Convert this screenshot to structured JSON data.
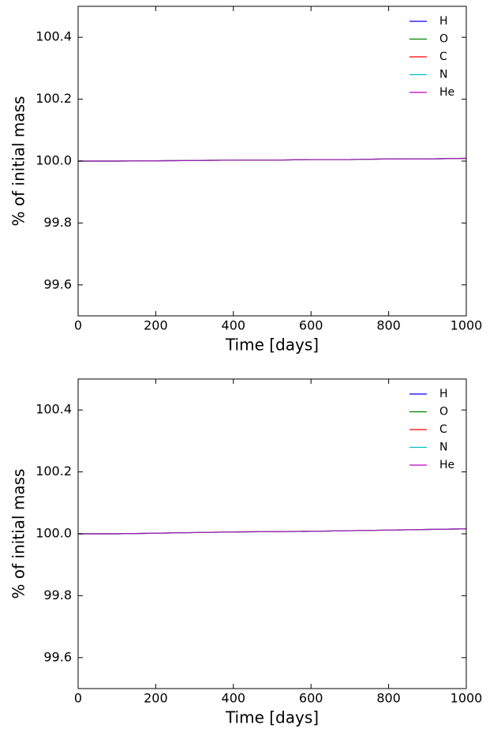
{
  "chart_data": [
    {
      "type": "line",
      "xlabel": "Time [days]",
      "ylabel": "% of initial mass",
      "x": [
        0,
        100,
        200,
        300,
        400,
        500,
        600,
        700,
        800,
        900,
        1000
      ],
      "series": [
        {
          "name": "H",
          "color": "#0000ff",
          "values": [
            100.0,
            100.0,
            100.001,
            100.002,
            100.003,
            100.003,
            100.005,
            100.005,
            100.007,
            100.007,
            100.009
          ]
        },
        {
          "name": "O",
          "color": "#008000",
          "values": [
            100.0,
            100.0,
            100.001,
            100.002,
            100.003,
            100.003,
            100.005,
            100.005,
            100.007,
            100.007,
            100.009
          ]
        },
        {
          "name": "C",
          "color": "#ff0000",
          "values": [
            100.0,
            100.0,
            100.001,
            100.002,
            100.003,
            100.003,
            100.005,
            100.005,
            100.007,
            100.007,
            100.009
          ]
        },
        {
          "name": "N",
          "color": "#00bfbf",
          "values": [
            100.0,
            100.0,
            100.001,
            100.002,
            100.003,
            100.003,
            100.005,
            100.005,
            100.007,
            100.007,
            100.009
          ]
        },
        {
          "name": "He",
          "color": "#bf00bf",
          "values": [
            100.0,
            100.0,
            100.001,
            100.002,
            100.003,
            100.003,
            100.005,
            100.005,
            100.007,
            100.007,
            100.009
          ]
        }
      ],
      "xlim": [
        0,
        1000
      ],
      "xticks": [
        0,
        200,
        400,
        600,
        800,
        1000
      ],
      "ylim": [
        99.5,
        100.5
      ],
      "yticks": [
        99.6,
        99.8,
        {
          "value": 100.0,
          "label": "100.0"
        },
        100.2,
        100.4
      ],
      "legend": "upper right"
    },
    {
      "type": "line",
      "xlabel": "Time [days]",
      "ylabel": "% of initial mass",
      "x": [
        0,
        100,
        200,
        300,
        400,
        500,
        600,
        700,
        800,
        900,
        1000
      ],
      "series": [
        {
          "name": "H",
          "color": "#0000ff",
          "values": [
            100.0,
            100.0,
            100.002,
            100.004,
            100.006,
            100.007,
            100.008,
            100.01,
            100.012,
            100.014,
            100.016
          ]
        },
        {
          "name": "O",
          "color": "#008000",
          "values": [
            100.0,
            100.0,
            100.002,
            100.004,
            100.006,
            100.007,
            100.008,
            100.01,
            100.012,
            100.014,
            100.016
          ]
        },
        {
          "name": "C",
          "color": "#ff0000",
          "values": [
            100.0,
            100.0,
            100.002,
            100.004,
            100.006,
            100.007,
            100.008,
            100.01,
            100.012,
            100.014,
            100.016
          ]
        },
        {
          "name": "N",
          "color": "#00bfbf",
          "values": [
            100.0,
            100.0,
            100.002,
            100.004,
            100.006,
            100.007,
            100.008,
            100.01,
            100.012,
            100.014,
            100.016
          ]
        },
        {
          "name": "He",
          "color": "#bf00bf",
          "values": [
            100.0,
            100.0,
            100.002,
            100.004,
            100.006,
            100.007,
            100.008,
            100.01,
            100.012,
            100.014,
            100.016
          ]
        }
      ],
      "xlim": [
        0,
        1000
      ],
      "xticks": [
        0,
        200,
        400,
        600,
        800,
        1000
      ],
      "ylim": [
        99.5,
        100.5
      ],
      "yticks": [
        99.6,
        99.8,
        {
          "value": 100.0,
          "label": "100.0"
        },
        100.2,
        100.4
      ],
      "legend": "upper right"
    }
  ]
}
